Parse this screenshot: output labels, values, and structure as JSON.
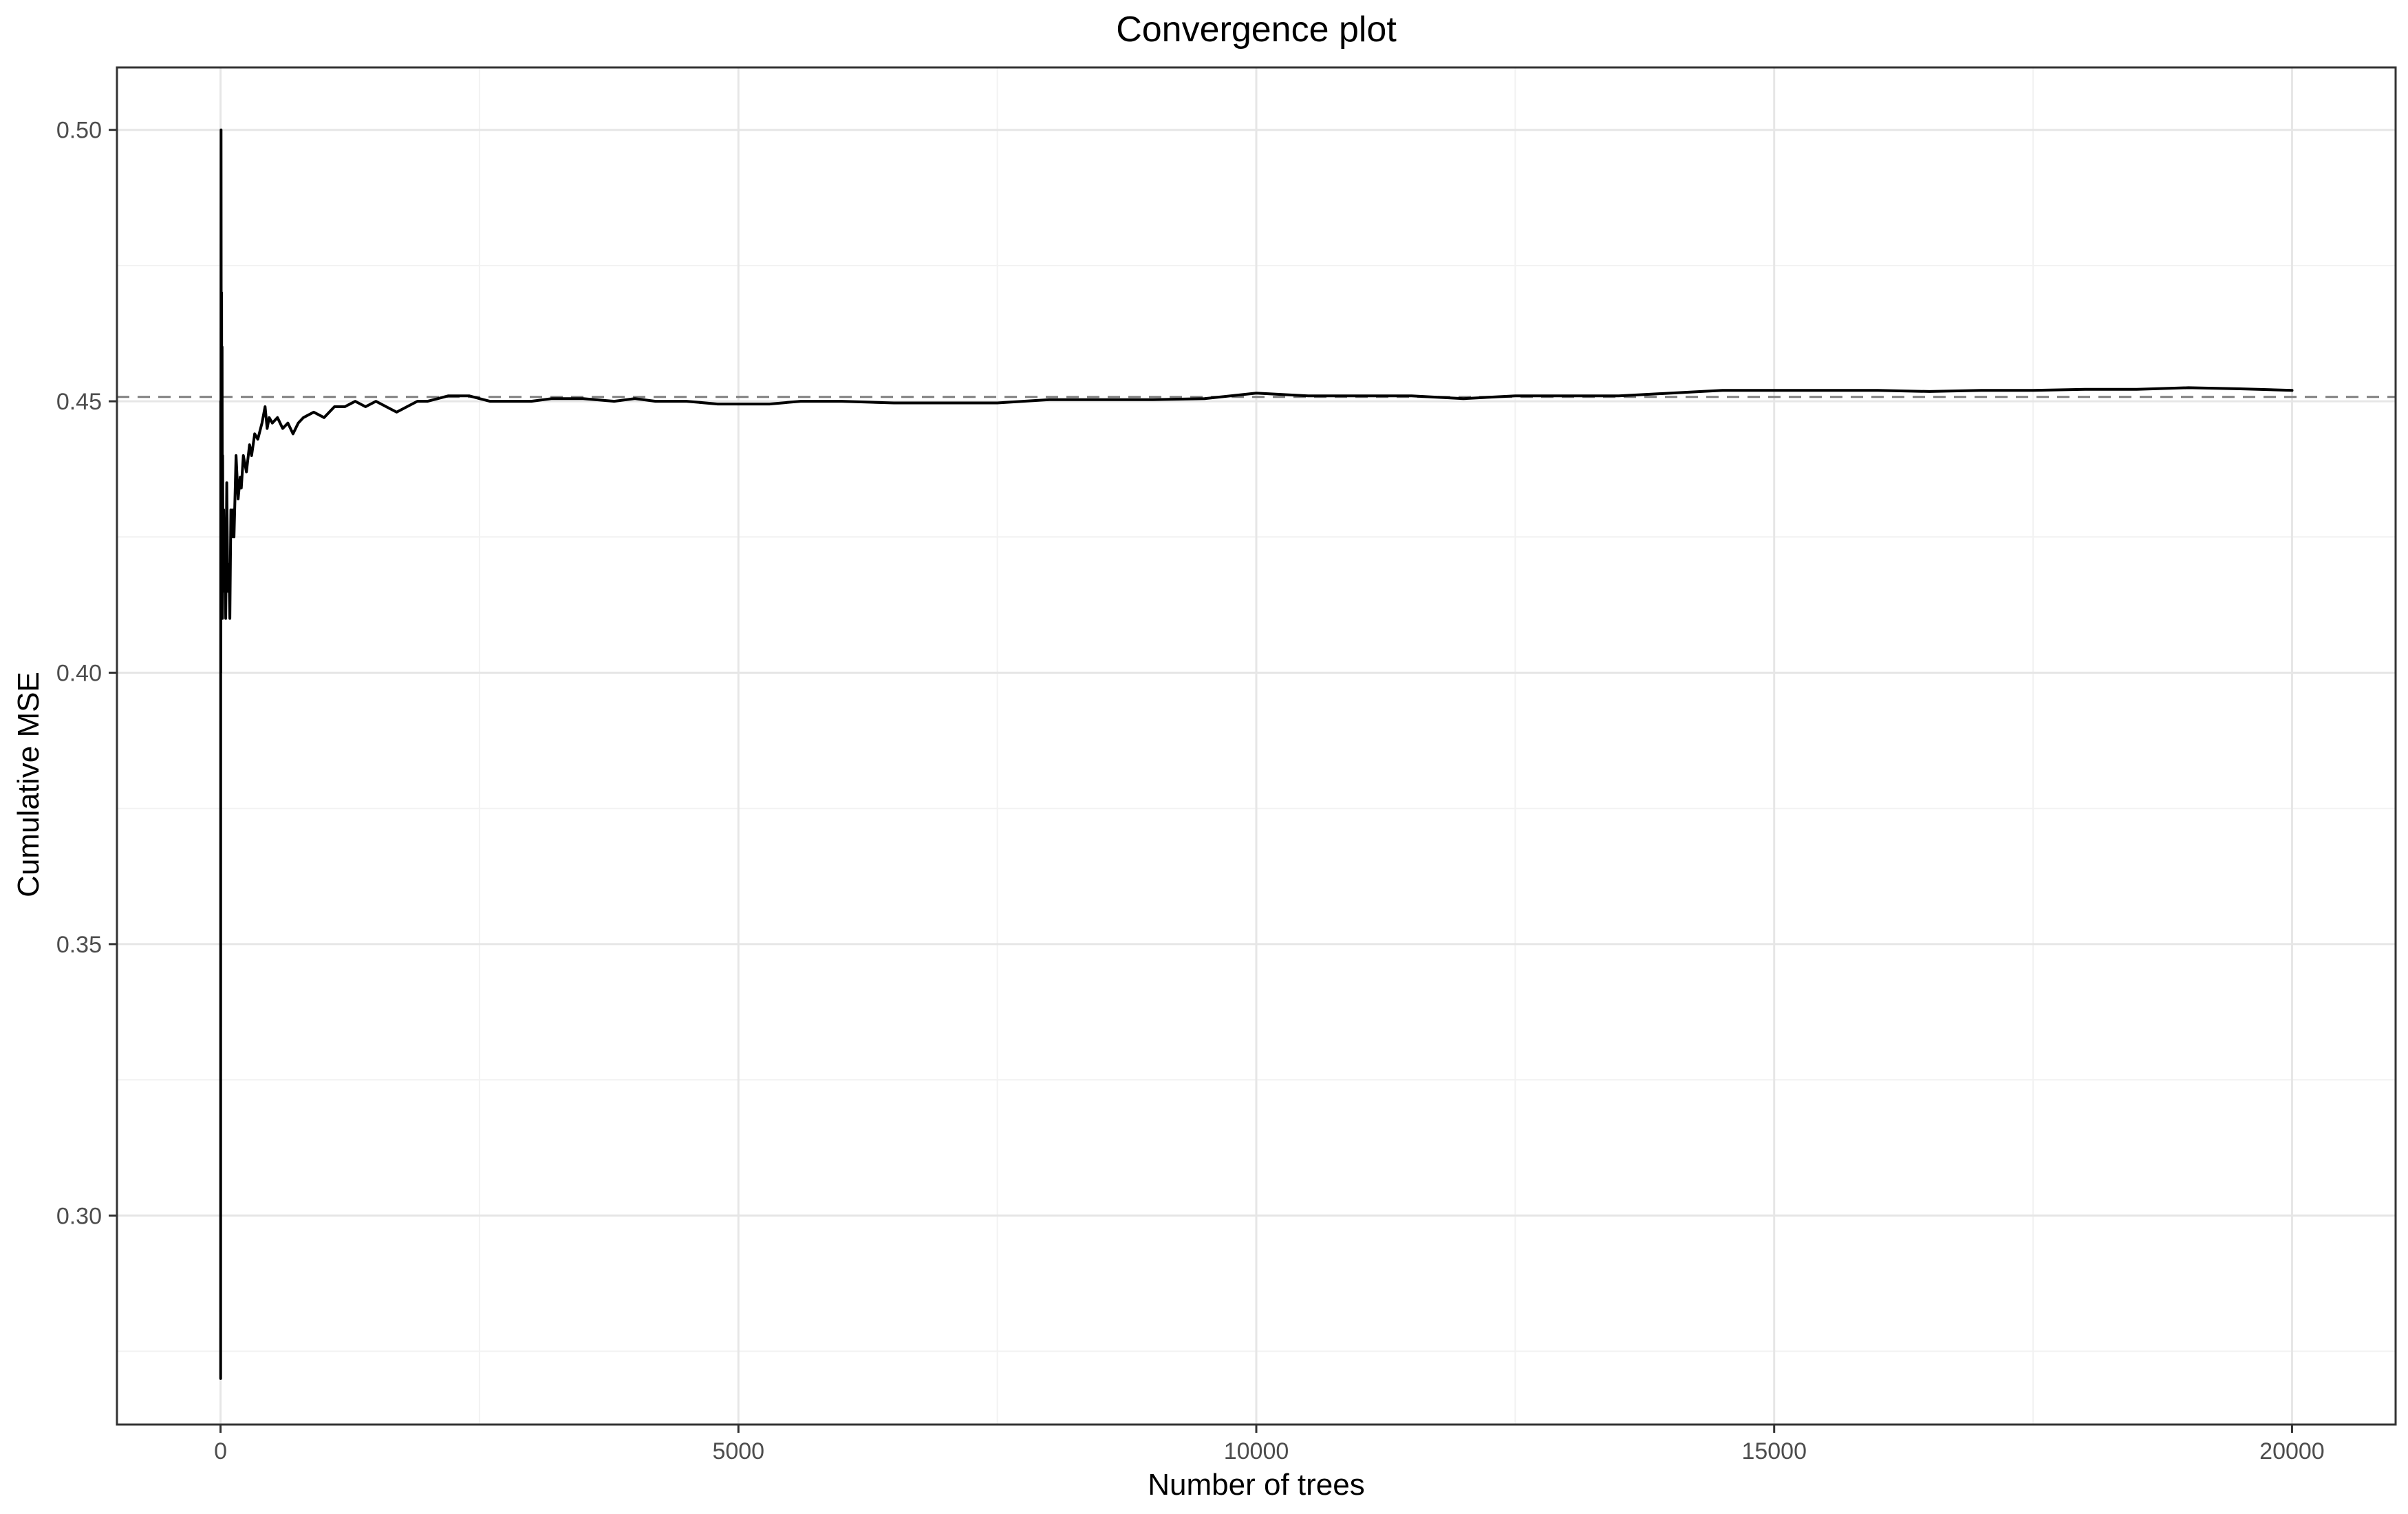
{
  "chart_data": {
    "type": "line",
    "title": "Convergence plot",
    "xlabel": "Number of trees",
    "ylabel": "Cumulative MSE",
    "xlim": [
      -1000,
      21000
    ],
    "ylim": [
      0.2615,
      0.5115
    ],
    "x_ticks": [
      0,
      5000,
      10000,
      15000,
      20000
    ],
    "x_tick_labels": [
      "0",
      "5000",
      "10000",
      "15000",
      "20000"
    ],
    "x_minor_ticks": [
      2500,
      7500,
      12500,
      17500
    ],
    "y_ticks": [
      0.3,
      0.35,
      0.4,
      0.45,
      0.5
    ],
    "y_tick_labels": [
      "0.30",
      "0.35",
      "0.40",
      "0.45",
      "0.50"
    ],
    "y_minor_ticks": [
      0.275,
      0.325,
      0.375,
      0.425,
      0.475
    ],
    "grid": true,
    "legend": "none",
    "reference_line": {
      "y": 0.4508,
      "style": "dashed",
      "color": "#808080"
    },
    "series": [
      {
        "color": "#000000",
        "x": [
          1,
          2,
          3,
          5,
          8,
          10,
          12,
          15,
          18,
          20,
          25,
          30,
          35,
          40,
          50,
          60,
          70,
          80,
          90,
          100,
          110,
          120,
          130,
          150,
          170,
          190,
          200,
          220,
          250,
          280,
          300,
          330,
          360,
          400,
          430,
          450,
          470,
          500,
          550,
          600,
          650,
          700,
          750,
          800,
          900,
          1000,
          1100,
          1200,
          1300,
          1400,
          1500,
          1600,
          1700,
          1800,
          1900,
          2000,
          2200,
          2400,
          2500,
          2600,
          2800,
          3000,
          3200,
          3500,
          3800,
          4000,
          4200,
          4500,
          4800,
          5000,
          5300,
          5600,
          6000,
          6500,
          7000,
          7500,
          8000,
          8500,
          9000,
          9500,
          10000,
          10500,
          11000,
          11500,
          12000,
          12500,
          13000,
          13500,
          14000,
          14500,
          15000,
          15500,
          16000,
          16500,
          17000,
          17500,
          18000,
          18500,
          19000,
          19500,
          20000
        ],
        "y": [
          0.27,
          0.45,
          0.4,
          0.5,
          0.43,
          0.47,
          0.42,
          0.46,
          0.41,
          0.44,
          0.415,
          0.43,
          0.42,
          0.425,
          0.41,
          0.435,
          0.415,
          0.42,
          0.41,
          0.43,
          0.425,
          0.43,
          0.425,
          0.44,
          0.432,
          0.436,
          0.434,
          0.44,
          0.437,
          0.442,
          0.44,
          0.444,
          0.443,
          0.446,
          0.449,
          0.445,
          0.447,
          0.446,
          0.447,
          0.445,
          0.446,
          0.444,
          0.446,
          0.447,
          0.448,
          0.447,
          0.449,
          0.449,
          0.45,
          0.449,
          0.45,
          0.449,
          0.448,
          0.449,
          0.45,
          0.45,
          0.451,
          0.451,
          0.4505,
          0.45,
          0.45,
          0.45,
          0.4505,
          0.4505,
          0.45,
          0.4505,
          0.45,
          0.45,
          0.4495,
          0.4495,
          0.4495,
          0.45,
          0.45,
          0.4497,
          0.4497,
          0.4497,
          0.4503,
          0.4503,
          0.4503,
          0.4505,
          0.4515,
          0.451,
          0.451,
          0.451,
          0.4505,
          0.451,
          0.451,
          0.451,
          0.4515,
          0.452,
          0.452,
          0.452,
          0.452,
          0.4518,
          0.452,
          0.452,
          0.4522,
          0.4522,
          0.4525,
          0.4523,
          0.452
        ]
      }
    ]
  }
}
